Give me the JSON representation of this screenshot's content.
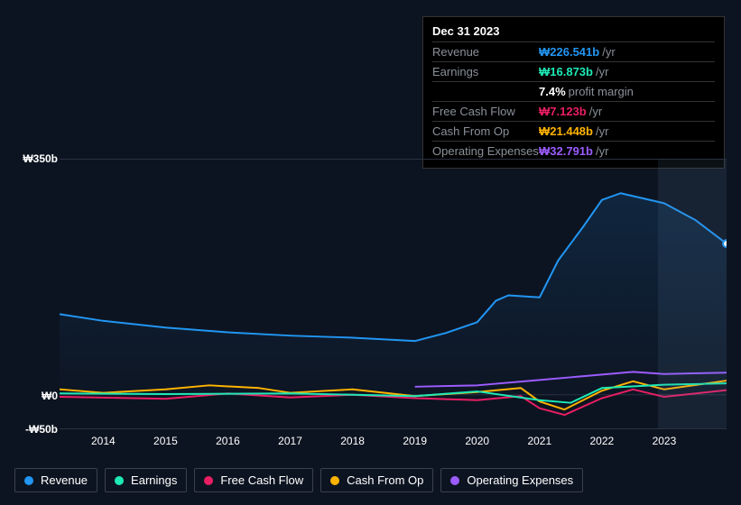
{
  "tooltip": {
    "title": "Dec 31 2023",
    "rows": [
      {
        "label": "Revenue",
        "value": "₩226.541b",
        "unit": "/yr",
        "color": "#2196f3"
      },
      {
        "label": "Earnings",
        "value": "₩16.873b",
        "unit": "/yr",
        "color": "#1de9b6"
      },
      {
        "label": "",
        "value": "7.4%",
        "unit": "profit margin",
        "color": "#ffffff"
      },
      {
        "label": "Free Cash Flow",
        "value": "₩7.123b",
        "unit": "/yr",
        "color": "#e91e63"
      },
      {
        "label": "Cash From Op",
        "value": "₩21.448b",
        "unit": "/yr",
        "color": "#ffb300"
      },
      {
        "label": "Operating Expenses",
        "value": "₩32.791b",
        "unit": "/yr",
        "color": "#9c5cff"
      }
    ]
  },
  "chart": {
    "type": "line",
    "background_color": "#0d1421",
    "grid_color": "#2a3040",
    "ylim": [
      -50,
      350
    ],
    "yticks": [
      {
        "value": 350,
        "label": "₩350b"
      },
      {
        "value": 0,
        "label": "₩0"
      },
      {
        "value": -50,
        "label": "-₩50b"
      }
    ],
    "xlim": [
      2013.3,
      2024
    ],
    "xticks": [
      2014,
      2015,
      2016,
      2017,
      2018,
      2019,
      2020,
      2021,
      2022,
      2023
    ],
    "highlight_x": 2023,
    "area_series": "revenue",
    "area_fill_top": "rgba(33,150,243,0.14)",
    "area_fill_bottom": "rgba(33,150,243,0.01)",
    "line_width": 2,
    "label_fontsize": 12,
    "series": {
      "revenue": {
        "label": "Revenue",
        "color": "#2196f3",
        "points": [
          [
            2013.3,
            120
          ],
          [
            2014,
            110
          ],
          [
            2015,
            100
          ],
          [
            2016,
            93
          ],
          [
            2017,
            88
          ],
          [
            2018,
            85
          ],
          [
            2019,
            80
          ],
          [
            2019.5,
            92
          ],
          [
            2020,
            108
          ],
          [
            2020.3,
            140
          ],
          [
            2020.5,
            148
          ],
          [
            2021,
            145
          ],
          [
            2021.3,
            200
          ],
          [
            2021.7,
            250
          ],
          [
            2022,
            290
          ],
          [
            2022.3,
            300
          ],
          [
            2023,
            285
          ],
          [
            2023.5,
            260
          ],
          [
            2024,
            225
          ]
        ]
      },
      "earnings": {
        "label": "Earnings",
        "color": "#1de9b6",
        "points": [
          [
            2013.3,
            2
          ],
          [
            2015,
            1
          ],
          [
            2017,
            2
          ],
          [
            2019,
            -2
          ],
          [
            2020,
            5
          ],
          [
            2021,
            -8
          ],
          [
            2021.5,
            -12
          ],
          [
            2022,
            10
          ],
          [
            2023,
            15
          ],
          [
            2024,
            17
          ]
        ]
      },
      "fcf": {
        "label": "Free Cash Flow",
        "color": "#e91e63",
        "points": [
          [
            2013.3,
            -3
          ],
          [
            2015,
            -6
          ],
          [
            2016,
            2
          ],
          [
            2017,
            -4
          ],
          [
            2018,
            0
          ],
          [
            2019,
            -5
          ],
          [
            2020,
            -8
          ],
          [
            2020.7,
            -2
          ],
          [
            2021,
            -20
          ],
          [
            2021.4,
            -30
          ],
          [
            2022,
            -5
          ],
          [
            2022.5,
            8
          ],
          [
            2023,
            -3
          ],
          [
            2024,
            7
          ]
        ]
      },
      "cfo": {
        "label": "Cash From Op",
        "color": "#ffb300",
        "points": [
          [
            2013.3,
            8
          ],
          [
            2014,
            3
          ],
          [
            2015,
            8
          ],
          [
            2015.7,
            14
          ],
          [
            2016.5,
            10
          ],
          [
            2017,
            3
          ],
          [
            2018,
            8
          ],
          [
            2019,
            -2
          ],
          [
            2020,
            4
          ],
          [
            2020.7,
            10
          ],
          [
            2021,
            -10
          ],
          [
            2021.4,
            -22
          ],
          [
            2022,
            6
          ],
          [
            2022.5,
            20
          ],
          [
            2023,
            8
          ],
          [
            2024,
            21
          ]
        ]
      },
      "opex": {
        "label": "Operating Expenses",
        "color": "#9c5cff",
        "points": [
          [
            2019,
            12
          ],
          [
            2020,
            14
          ],
          [
            2021,
            22
          ],
          [
            2022,
            30
          ],
          [
            2022.5,
            34
          ],
          [
            2023,
            31
          ],
          [
            2024,
            33
          ]
        ]
      }
    }
  },
  "legend": [
    {
      "key": "revenue",
      "label": "Revenue",
      "color": "#2196f3"
    },
    {
      "key": "earnings",
      "label": "Earnings",
      "color": "#1de9b6"
    },
    {
      "key": "fcf",
      "label": "Free Cash Flow",
      "color": "#e91e63"
    },
    {
      "key": "cfo",
      "label": "Cash From Op",
      "color": "#ffb300"
    },
    {
      "key": "opex",
      "label": "Operating Expenses",
      "color": "#9c5cff"
    }
  ]
}
